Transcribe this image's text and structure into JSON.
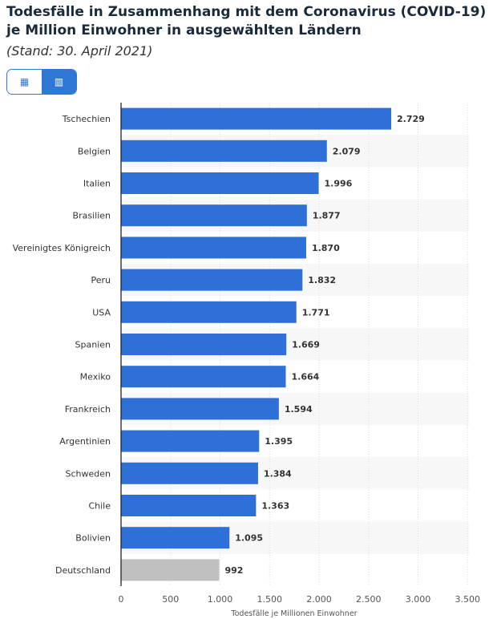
{
  "title": "Todesfälle in Zusammenhang mit dem Coronavirus (COVID-19) je Million Einwohner in ausgewählten Ländern",
  "subtitle": "(Stand: 30. April 2021)",
  "view_toggle": {
    "table_icon": "table-icon",
    "chart_icon": "bar-chart-icon",
    "active": "chart"
  },
  "colors": {
    "bar": "#2f6fd8",
    "highlight": "#c0c0c0"
  },
  "chart_data": {
    "type": "bar",
    "orientation": "horizontal",
    "categories": [
      "Tschechien",
      "Belgien",
      "Italien",
      "Brasilien",
      "Vereinigtes Königreich",
      "Peru",
      "USA",
      "Spanien",
      "Mexiko",
      "Frankreich",
      "Argentinien",
      "Schweden",
      "Chile",
      "Bolivien",
      "Deutschland"
    ],
    "values": [
      2729,
      2079,
      1996,
      1877,
      1870,
      1832,
      1771,
      1669,
      1664,
      1594,
      1395,
      1384,
      1363,
      1095,
      992
    ],
    "value_labels": [
      "2.729",
      "2.079",
      "1.996",
      "1.877",
      "1.870",
      "1.832",
      "1.771",
      "1.669",
      "1.664",
      "1.594",
      "1.395",
      "1.384",
      "1.363",
      "1.095",
      "992"
    ],
    "highlighted": "Deutschland",
    "xlabel": "Todesfälle je Millionen Einwohner",
    "ylabel": "",
    "xlim": [
      0,
      3500
    ],
    "xticks": [
      0,
      500,
      1000,
      1500,
      2000,
      2500,
      3000,
      3500
    ],
    "xtick_labels": [
      "0",
      "500",
      "1.000",
      "1.500",
      "2.000",
      "2.500",
      "3.000",
      "3.500"
    ],
    "grid": true
  }
}
